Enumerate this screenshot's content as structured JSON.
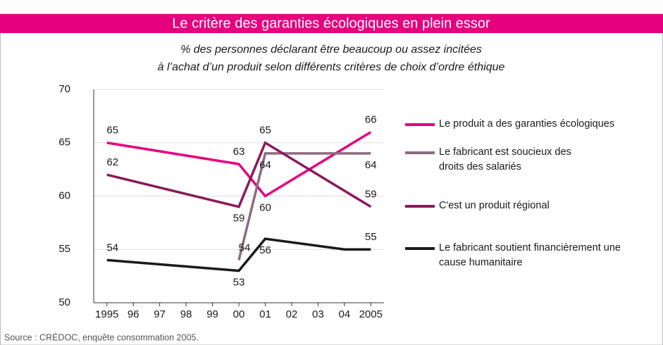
{
  "chart_data": {
    "type": "line",
    "title": "Le critère des garanties écologiques en plein essor",
    "subtitle": [
      "% des personnes déclarant être beaucoup ou assez incitées",
      "à l’achat d’un produit selon différents critères de choix d’ordre éthique"
    ],
    "source": "Source : CRÉDOC, enquête consommation 2005.",
    "xlim": [
      1994.5,
      2005.5
    ],
    "xticks": [
      1995,
      {
        "value": 1996,
        "label": "96"
      },
      {
        "value": 1997,
        "label": "97"
      },
      {
        "value": 1998,
        "label": "98"
      },
      {
        "value": 1999,
        "label": "99"
      },
      {
        "value": 2000,
        "label": "00"
      },
      {
        "value": 2001,
        "label": "01"
      },
      {
        "value": 2002,
        "label": "02"
      },
      {
        "value": 2003,
        "label": "03"
      },
      {
        "value": 2004,
        "label": "04"
      },
      2005
    ],
    "ylim": [
      50,
      70
    ],
    "yticks": [
      50,
      55,
      60,
      65,
      70
    ],
    "grid": true,
    "series": [
      {
        "name": "Le produit a des garanties écologiques",
        "color": "#e6007e",
        "x": [
          1995,
          2000,
          2001,
          2005
        ],
        "values": [
          65,
          63,
          60,
          66
        ]
      },
      {
        "name": "Le fabricant est soucieux des droits des salariés",
        "color": "#8e6a80",
        "x": [
          2000,
          2001,
          2005
        ],
        "values": [
          54,
          64,
          64
        ]
      },
      {
        "name": "C'est un produit régional",
        "color": "#8a1a5a",
        "x": [
          1995,
          2000,
          2001,
          2005
        ],
        "values": [
          62,
          59,
          65,
          59
        ]
      },
      {
        "name": "Le fabricant soutient financièrement une cause humanitaire",
        "color": "#1a1a1a",
        "x": [
          1995,
          2000,
          2001,
          2004,
          2005
        ],
        "values": [
          54,
          53,
          56,
          55,
          55
        ],
        "value_labels": [
          "54",
          "53",
          "56",
          null,
          "55"
        ]
      }
    ]
  }
}
